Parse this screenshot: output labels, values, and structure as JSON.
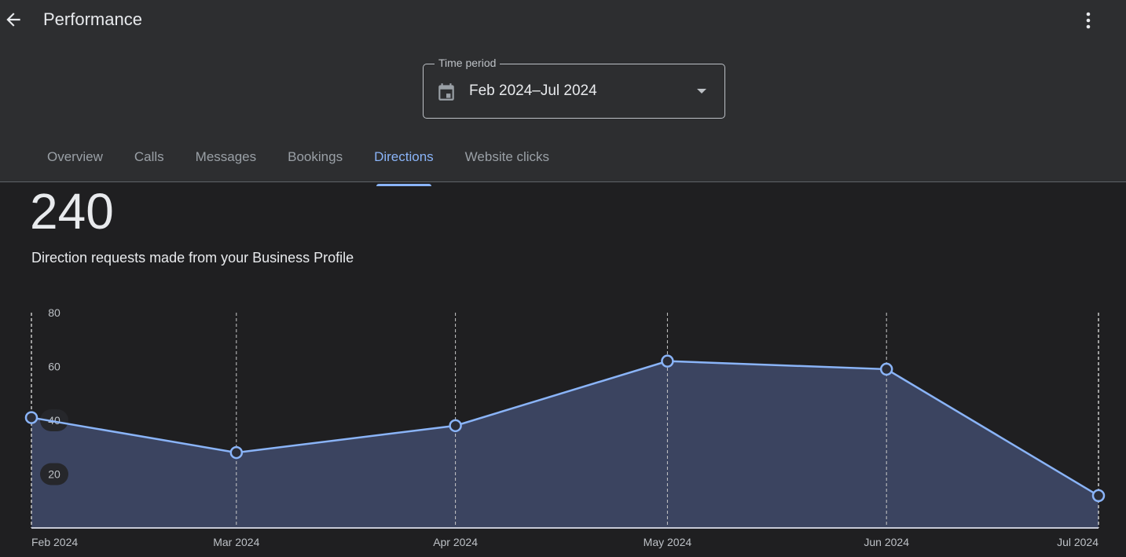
{
  "header": {
    "title": "Performance",
    "back_icon": "arrow-back-icon",
    "menu_icon": "more-vert-icon"
  },
  "time_period": {
    "label": "Time period",
    "value": "Feb 2024–Jul 2024",
    "icon": "calendar-icon"
  },
  "tabs": [
    {
      "label": "Overview"
    },
    {
      "label": "Calls"
    },
    {
      "label": "Messages"
    },
    {
      "label": "Bookings"
    },
    {
      "label": "Directions",
      "active": true
    },
    {
      "label": "Website clicks"
    }
  ],
  "summary": {
    "total": "240",
    "description": "Direction requests made from your Business Profile"
  },
  "colors": {
    "line": "#8ab4f8",
    "fill": "#3b4460",
    "grid": "#c8c8c8"
  },
  "chart_data": {
    "type": "area",
    "title": "",
    "xlabel": "",
    "ylabel": "",
    "categories": [
      "Feb 2024",
      "Mar 2024",
      "Apr 2024",
      "May 2024",
      "Jun 2024",
      "Jul 2024"
    ],
    "dates": [
      "2024-02-01",
      "2024-03-01",
      "2024-04-01",
      "2024-05-01",
      "2024-06-01",
      "2024-07-01"
    ],
    "values": [
      41,
      28,
      38,
      62,
      59,
      12
    ],
    "ylim": [
      0,
      80
    ],
    "yticks": [
      "20",
      "40",
      "60",
      "80"
    ],
    "grid": "vertical dashed"
  }
}
